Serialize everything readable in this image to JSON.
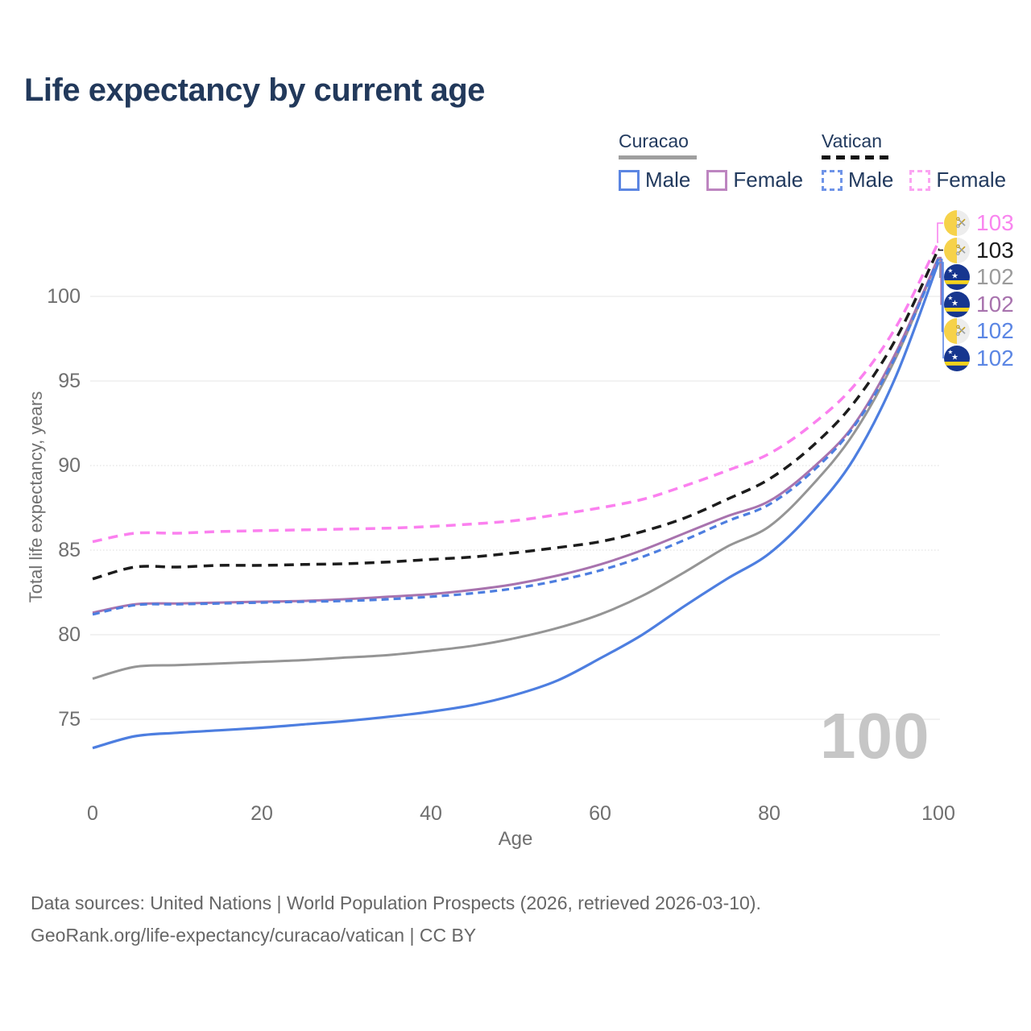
{
  "title": "Life expectancy by current age",
  "watermark": "100",
  "legend": {
    "groups": [
      {
        "name": "Curacao",
        "line_style": "solid",
        "line_color": "#9f9f9f",
        "items": [
          {
            "label": "Male",
            "color": "#5c86e2",
            "dashed": false
          },
          {
            "label": "Female",
            "color": "#bd85c0",
            "dashed": false
          }
        ]
      },
      {
        "name": "Vatican",
        "line_style": "dashed",
        "line_color": "#151515",
        "items": [
          {
            "label": "Male",
            "color": "#6f94e8",
            "dashed": true
          },
          {
            "label": "Female",
            "color": "#fba4f2",
            "dashed": true
          }
        ]
      }
    ]
  },
  "chart_data": {
    "type": "line",
    "title": "Life expectancy by current age",
    "xlabel": "Age",
    "ylabel": "Total life expectancy, years",
    "xlim": [
      0,
      100
    ],
    "ylim": [
      73,
      103.5
    ],
    "x_ticks": [
      0,
      20,
      40,
      60,
      80,
      100
    ],
    "y_ticks": [
      75,
      80,
      85,
      90,
      95,
      100
    ],
    "dotted_gridlines": [
      85,
      90
    ],
    "grid": true,
    "legend_position": "top-right",
    "ages": [
      0,
      5,
      10,
      15,
      20,
      25,
      30,
      35,
      40,
      45,
      50,
      55,
      60,
      65,
      70,
      75,
      80,
      85,
      90,
      95,
      100
    ],
    "series": [
      {
        "name": "Vatican Female",
        "country": "Vatican",
        "sex": "female",
        "flag": "vatican",
        "color": "#fb80ef",
        "label_color": "#f985ef",
        "dash": "12 8",
        "width": 3.5,
        "end_label": "103",
        "values": [
          85.5,
          86.0,
          86.0,
          86.1,
          86.15,
          86.2,
          86.25,
          86.3,
          86.4,
          86.55,
          86.75,
          87.1,
          87.5,
          88.0,
          88.8,
          89.7,
          90.7,
          92.4,
          94.7,
          98.2,
          103.2
        ]
      },
      {
        "name": "Vatican",
        "country": "Vatican",
        "sex": "all",
        "flag": "vatican",
        "color": "#1c1c1c",
        "label_color": "#1c1c1c",
        "dash": "12 8",
        "width": 3.5,
        "end_label": "103",
        "values": [
          83.3,
          84.0,
          84.0,
          84.1,
          84.1,
          84.15,
          84.2,
          84.3,
          84.45,
          84.6,
          84.85,
          85.15,
          85.5,
          86.1,
          86.9,
          88.0,
          89.2,
          91.1,
          93.7,
          97.5,
          102.8
        ]
      },
      {
        "name": "Curacao",
        "country": "Curacao",
        "sex": "all",
        "flag": "curacao",
        "color": "#959595",
        "label_color": "#9b9b9b",
        "dash": null,
        "width": 3,
        "end_label": "102",
        "values": [
          77.4,
          78.1,
          78.2,
          78.3,
          78.4,
          78.5,
          78.65,
          78.8,
          79.05,
          79.35,
          79.8,
          80.4,
          81.2,
          82.3,
          83.7,
          85.2,
          86.4,
          88.8,
          91.9,
          96.4,
          102.3
        ]
      },
      {
        "name": "Curacao Female",
        "country": "Curacao",
        "sex": "female",
        "flag": "curacao",
        "color": "#a873ae",
        "label_color": "#a873ae",
        "dash": null,
        "width": 3,
        "end_label": "102",
        "values": [
          81.3,
          81.8,
          81.85,
          81.9,
          81.95,
          82.0,
          82.1,
          82.25,
          82.4,
          82.65,
          83.0,
          83.5,
          84.15,
          85.0,
          86.0,
          87.0,
          87.9,
          89.8,
          92.4,
          96.7,
          102.3
        ]
      },
      {
        "name": "Vatican Male",
        "country": "Vatican",
        "sex": "male",
        "flag": "vatican",
        "color": "#4d7ee0",
        "label_color": "#5b86e4",
        "dash": "9 6",
        "width": 3.2,
        "end_label": "102",
        "values": [
          81.2,
          81.75,
          81.8,
          81.85,
          81.9,
          81.95,
          82.0,
          82.1,
          82.25,
          82.45,
          82.75,
          83.2,
          83.8,
          84.6,
          85.6,
          86.7,
          87.7,
          89.6,
          92.3,
          96.5,
          102.2
        ]
      },
      {
        "name": "Curacao Male",
        "country": "Curacao",
        "sex": "male",
        "flag": "curacao",
        "color": "#4d7ee0",
        "label_color": "#5b86e4",
        "dash": null,
        "width": 3.2,
        "end_label": "102",
        "values": [
          73.3,
          74.0,
          74.2,
          74.35,
          74.5,
          74.7,
          74.9,
          75.15,
          75.45,
          75.85,
          76.45,
          77.3,
          78.6,
          80.0,
          81.7,
          83.3,
          84.8,
          87.2,
          90.4,
          95.3,
          102.0
        ]
      }
    ],
    "flag_colors": {
      "curacao_blue": "#17368f",
      "curacao_yellow": "#f4d21d",
      "curacao_star": "#ffffff",
      "vatican_yellow": "#f6d24a",
      "vatican_white": "#ededed",
      "vatican_key_gold": "#c3a021",
      "vatican_key_gray": "#9aa0a6"
    }
  },
  "footer": {
    "line1": "Data sources: United Nations | World Population Prospects (2026, retrieved 2026-03-10).",
    "line2": "GeoRank.org/life-expectancy/curacao/vatican | CC BY"
  }
}
